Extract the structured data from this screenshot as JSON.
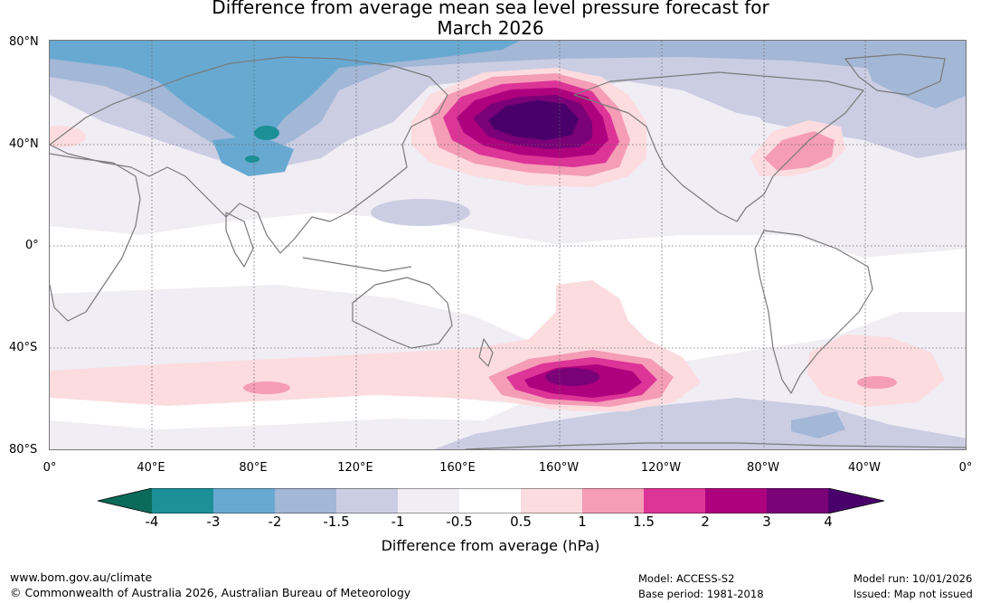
{
  "title": {
    "line1": "Difference from average mean sea level pressure forecast for",
    "line2": "March 2026"
  },
  "lat_labels": [
    "80°N",
    "40°N",
    "0°",
    "40°S",
    "80°S"
  ],
  "lon_labels": [
    "0°",
    "40°E",
    "80°E",
    "120°E",
    "160°E",
    "160°W",
    "120°W",
    "80°W",
    "40°W",
    "0°"
  ],
  "colorbar": {
    "ticks": [
      "-4",
      "-3",
      "-2",
      "-1.5",
      "-1",
      "-0.5",
      "0.5",
      "1",
      "1.5",
      "2",
      "3",
      "4"
    ],
    "colors": {
      "below_min": "#0b6b5a",
      "bins": [
        "#1b9096",
        "#68a9d1",
        "#a3b7d6",
        "#cbcde3",
        "#f0edf4",
        "#ffffff",
        "#fcdcdf",
        "#f59cb7",
        "#dd3497",
        "#ae017e",
        "#7a0177"
      ],
      "above_max": "#49006a"
    },
    "label": "Difference from average (hPa)"
  },
  "footer": {
    "website": "www.bom.gov.au/climate",
    "copyright": "© Commonwealth of Australia 2026, Australian Bureau of Meteorology",
    "model": "Model: ACCESS-S2",
    "base_period": "Base period: 1981-2018",
    "model_run": "Model run: 10/01/2026",
    "issued": "Issued: Map not issued"
  }
}
